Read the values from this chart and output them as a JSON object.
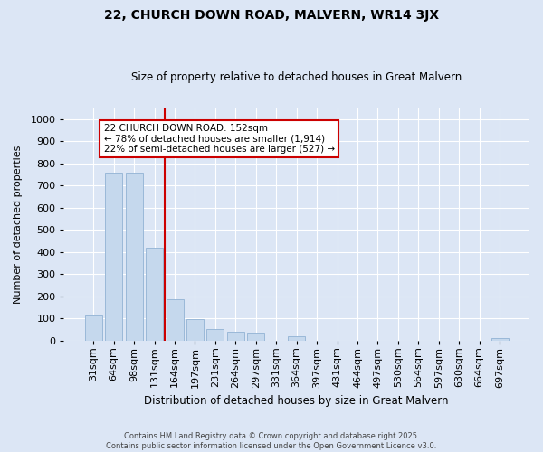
{
  "title": "22, CHURCH DOWN ROAD, MALVERN, WR14 3JX",
  "subtitle": "Size of property relative to detached houses in Great Malvern",
  "xlabel": "Distribution of detached houses by size in Great Malvern",
  "ylabel": "Number of detached properties",
  "categories": [
    "31sqm",
    "64sqm",
    "98sqm",
    "131sqm",
    "164sqm",
    "197sqm",
    "231sqm",
    "264sqm",
    "297sqm",
    "331sqm",
    "364sqm",
    "397sqm",
    "431sqm",
    "464sqm",
    "497sqm",
    "530sqm",
    "564sqm",
    "597sqm",
    "630sqm",
    "664sqm",
    "697sqm"
  ],
  "values": [
    113,
    760,
    760,
    420,
    185,
    95,
    50,
    40,
    35,
    0,
    20,
    0,
    0,
    0,
    0,
    0,
    0,
    0,
    0,
    0,
    10
  ],
  "bar_color": "#c5d8ed",
  "bar_edge_color": "#9ab8d8",
  "property_line_x": 3.5,
  "annotation_text_line1": "22 CHURCH DOWN ROAD: 152sqm",
  "annotation_text_line2": "← 78% of detached houses are smaller (1,914)",
  "annotation_text_line3": "22% of semi-detached houses are larger (527) →",
  "annotation_box_facecolor": "#ffffff",
  "annotation_box_edgecolor": "#cc0000",
  "property_line_color": "#cc0000",
  "footer_line1": "Contains HM Land Registry data © Crown copyright and database right 2025.",
  "footer_line2": "Contains public sector information licensed under the Open Government Licence v3.0.",
  "bg_color": "#dce6f5",
  "plot_bg_color": "#dce6f5",
  "ylim": [
    0,
    1050
  ],
  "yticks": [
    0,
    100,
    200,
    300,
    400,
    500,
    600,
    700,
    800,
    900,
    1000
  ]
}
